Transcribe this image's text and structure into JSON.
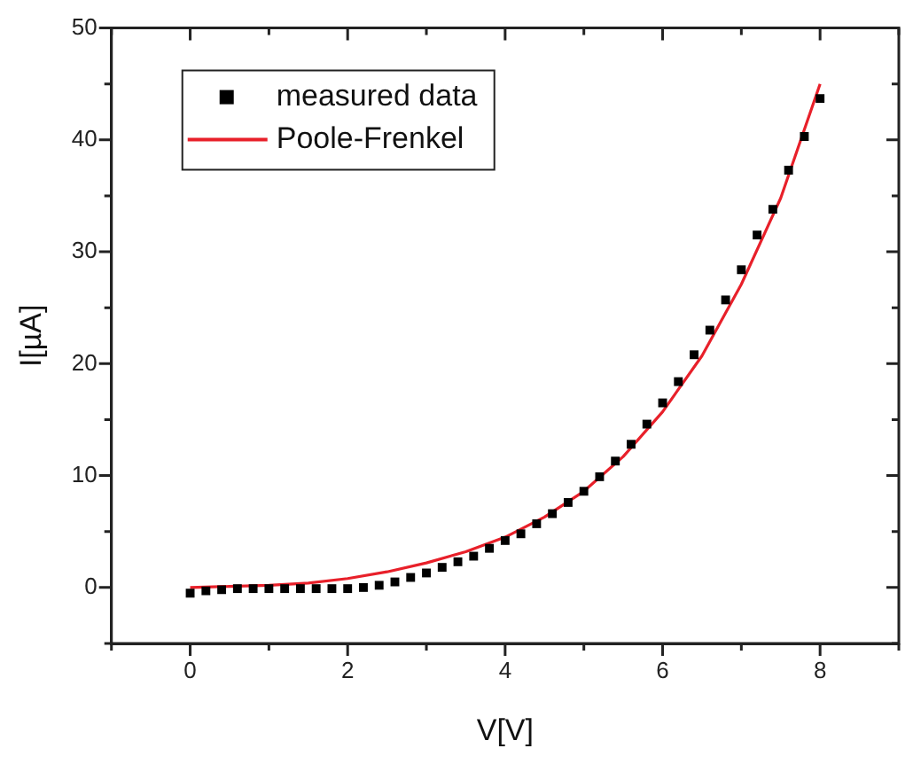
{
  "chart_data": {
    "type": "scatter",
    "xlabel": "V[V]",
    "ylabel": "I[µA]",
    "xlim": [
      -1,
      9
    ],
    "ylim": [
      -5,
      50
    ],
    "xticks": [
      {
        "value": -1,
        "label": null
      },
      0,
      {
        "value": 1,
        "label": null
      },
      2,
      {
        "value": 3,
        "label": null
      },
      4,
      {
        "value": 5,
        "label": null
      },
      6,
      {
        "value": 7,
        "label": null
      },
      8,
      {
        "value": 9,
        "label": null
      }
    ],
    "yticks": [
      {
        "value": -5,
        "label": null
      },
      0,
      {
        "value": 5,
        "label": null
      },
      10,
      {
        "value": 15,
        "label": null
      },
      20,
      {
        "value": 25,
        "label": null
      },
      30,
      {
        "value": 35,
        "label": null
      },
      40,
      {
        "value": 45,
        "label": null
      },
      50
    ],
    "grid": false,
    "legend": "top left",
    "series": [
      {
        "name": "measured data",
        "marker": "square",
        "color": "#000000",
        "x": [
          0,
          0.2,
          0.4,
          0.6,
          0.8,
          1.0,
          1.2,
          1.4,
          1.6,
          1.8,
          2.0,
          2.2,
          2.4,
          2.6,
          2.8,
          3.0,
          3.2,
          3.4,
          3.6,
          3.8,
          4.0,
          4.2,
          4.4,
          4.6,
          4.8,
          5.0,
          5.2,
          5.4,
          5.6,
          5.8,
          6.0,
          6.2,
          6.4,
          6.6,
          6.8,
          7.0,
          7.2,
          7.4,
          7.6,
          7.8,
          8.0
        ],
        "values": [
          -0.5,
          -0.3,
          -0.2,
          -0.1,
          -0.1,
          -0.1,
          -0.1,
          -0.1,
          -0.1,
          -0.1,
          -0.1,
          0,
          0.2,
          0.5,
          0.9,
          1.3,
          1.8,
          2.3,
          2.8,
          3.5,
          4.2,
          4.8,
          5.7,
          6.6,
          7.6,
          8.6,
          9.9,
          11.3,
          12.8,
          14.6,
          16.5,
          18.4,
          20.8,
          23.0,
          25.7,
          28.4,
          31.5,
          33.8,
          37.3,
          40.3,
          43.7
        ]
      },
      {
        "name": "Poole-Frenkel",
        "type": "line",
        "marker": "none",
        "line_style": "solid",
        "color": "#e8202a",
        "x": [
          0,
          0.5,
          1,
          1.5,
          2,
          2.5,
          3,
          3.5,
          4,
          4.5,
          5,
          5.5,
          6,
          6.5,
          7,
          7.5,
          8
        ],
        "values": [
          0,
          0.1,
          0.2,
          0.4,
          0.8,
          1.4,
          2.2,
          3.2,
          4.5,
          6.3,
          8.6,
          11.7,
          15.7,
          20.7,
          27.1,
          34.8,
          45.0
        ]
      }
    ]
  }
}
